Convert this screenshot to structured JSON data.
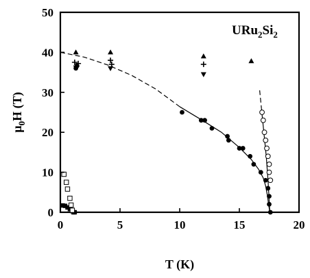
{
  "chart_data": {
    "type": "scatter",
    "title": "",
    "annotation": {
      "text": "URu",
      "sub1": "2",
      "mid": "Si",
      "sub2": "2"
    },
    "xlabel": "T (K)",
    "ylabel": {
      "main": "μ",
      "sub": "0",
      "rest": "H (T)"
    },
    "xlim": [
      0,
      20
    ],
    "ylim": [
      0,
      50
    ],
    "xticks": [
      "0",
      "5",
      "10",
      "15",
      "20"
    ],
    "yticks": [
      "0",
      "10",
      "20",
      "30",
      "40",
      "50"
    ],
    "grid": false,
    "legend": "none",
    "series": [
      {
        "marker": "filled-circle",
        "points": [
          [
            1.3,
            36
          ],
          [
            1.4,
            36.6
          ],
          [
            10.2,
            25
          ],
          [
            11.8,
            23
          ],
          [
            12.1,
            23
          ],
          [
            12.7,
            21
          ],
          [
            14,
            19
          ],
          [
            14.1,
            18
          ],
          [
            15,
            16
          ],
          [
            15.3,
            16
          ],
          [
            15.9,
            14
          ],
          [
            16.2,
            12
          ],
          [
            16.8,
            10
          ],
          [
            17.2,
            8
          ],
          [
            17.4,
            6
          ],
          [
            17.5,
            4
          ],
          [
            17.5,
            2
          ],
          [
            17.6,
            0
          ]
        ]
      },
      {
        "marker": "open-circle",
        "points": [
          [
            16.9,
            25
          ],
          [
            17,
            23
          ],
          [
            17.1,
            20
          ],
          [
            17.2,
            18
          ],
          [
            17.3,
            16
          ],
          [
            17.4,
            14
          ],
          [
            17.5,
            12
          ],
          [
            17.5,
            10
          ],
          [
            17.6,
            8
          ]
        ]
      },
      {
        "marker": "filled-square",
        "points": [
          [
            0.2,
            1.7
          ],
          [
            0.4,
            1.6
          ],
          [
            0.6,
            1.2
          ],
          [
            0.8,
            0.8
          ],
          [
            1,
            0.3
          ],
          [
            1.1,
            0
          ],
          [
            1.2,
            0
          ]
        ]
      },
      {
        "marker": "open-square",
        "points": [
          [
            0.3,
            9.5
          ],
          [
            0.5,
            7.5
          ],
          [
            0.6,
            5.8
          ],
          [
            0.8,
            3.5
          ],
          [
            0.9,
            1.8
          ],
          [
            1.0,
            0.5
          ]
        ]
      },
      {
        "marker": "filled-triangle-up",
        "points": [
          [
            1.3,
            40
          ],
          [
            4.2,
            40
          ],
          [
            12.0,
            39
          ],
          [
            16.0,
            37.8
          ]
        ]
      },
      {
        "marker": "plus",
        "points": [
          [
            1.2,
            37.5
          ],
          [
            1.5,
            37.2
          ],
          [
            4.2,
            38
          ],
          [
            4.3,
            37
          ],
          [
            12.0,
            37
          ]
        ]
      },
      {
        "marker": "filled-triangle-down",
        "points": [
          [
            1.3,
            36.2
          ],
          [
            4.2,
            36
          ],
          [
            12.0,
            34.5
          ]
        ]
      }
    ],
    "curves": [
      {
        "style": "dashed",
        "points": [
          [
            0,
            40
          ],
          [
            2,
            38.8
          ],
          [
            4,
            36.8
          ],
          [
            6,
            34.2
          ],
          [
            8,
            30.8
          ],
          [
            10,
            26.4
          ]
        ]
      },
      {
        "style": "solid",
        "points": [
          [
            10,
            26.4
          ],
          [
            12,
            22.8
          ],
          [
            13.5,
            20
          ],
          [
            15,
            16.2
          ],
          [
            16,
            13.2
          ],
          [
            16.6,
            10.8
          ],
          [
            17.0,
            8.6
          ],
          [
            17.2,
            6.6
          ],
          [
            17.35,
            4.2
          ],
          [
            17.45,
            2
          ],
          [
            17.55,
            0
          ]
        ]
      },
      {
        "style": "dashed",
        "points": [
          [
            16.7,
            30.5
          ],
          [
            16.85,
            26
          ]
        ]
      },
      {
        "style": "solid",
        "points": [
          [
            16.85,
            26
          ],
          [
            17.05,
            20
          ],
          [
            17.25,
            14
          ],
          [
            17.4,
            8
          ],
          [
            17.55,
            0
          ]
        ]
      }
    ]
  }
}
